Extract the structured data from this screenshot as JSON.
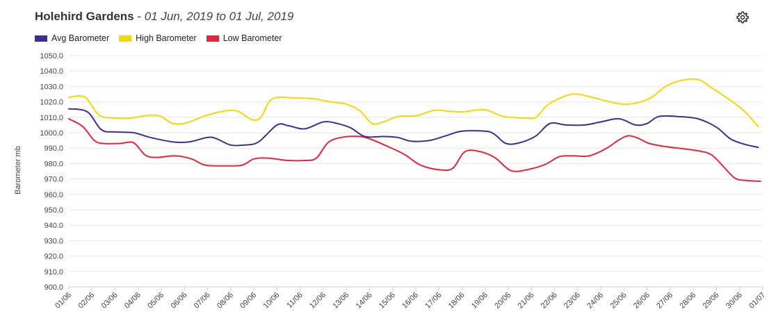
{
  "header": {
    "station": "Holehird Gardens",
    "separator": " - ",
    "range": "01 Jun, 2019 to 01 Jul, 2019"
  },
  "toolbar": {
    "settings_icon": "gear-icon"
  },
  "chart_data": {
    "type": "line",
    "ylabel": "Barometer mb",
    "ylim": [
      900,
      1050
    ],
    "ystep": 10,
    "grid": true,
    "legend_position": "top-left",
    "x_ticks": [
      "01/06",
      "02/06",
      "03/06",
      "04/06",
      "05/06",
      "06/06",
      "07/06",
      "08/06",
      "09/06",
      "10/06",
      "11/06",
      "12/06",
      "13/06",
      "14/06",
      "15/06",
      "16/06",
      "17/06",
      "18/06",
      "19/06",
      "20/06",
      "21/06",
      "22/06",
      "23/06",
      "24/06",
      "25/06",
      "26/06",
      "27/06",
      "28/06",
      "29/06",
      "30/06",
      "01/07"
    ],
    "x_day_range": [
      0,
      30
    ],
    "series": [
      {
        "name": "Avg Barometer",
        "color": "#3d2e8f",
        "points": [
          [
            0,
            1015.5
          ],
          [
            0.8,
            1013.5
          ],
          [
            1.4,
            1002
          ],
          [
            2,
            1000.5
          ],
          [
            2.8,
            1000
          ],
          [
            3.5,
            997
          ],
          [
            4.5,
            994
          ],
          [
            5.2,
            994
          ],
          [
            6,
            997
          ],
          [
            6.4,
            996
          ],
          [
            7,
            992
          ],
          [
            7.6,
            992
          ],
          [
            8.2,
            994
          ],
          [
            9,
            1005
          ],
          [
            9.5,
            1004.5
          ],
          [
            10.2,
            1002.5
          ],
          [
            11,
            1007
          ],
          [
            11.6,
            1006
          ],
          [
            12.2,
            1003
          ],
          [
            12.8,
            997.5
          ],
          [
            13.6,
            997.5
          ],
          [
            14.2,
            997
          ],
          [
            14.8,
            994.5
          ],
          [
            15.6,
            995
          ],
          [
            16.3,
            998
          ],
          [
            17,
            1001
          ],
          [
            18,
            1001
          ],
          [
            18.4,
            999
          ],
          [
            18.9,
            993
          ],
          [
            19.5,
            993.5
          ],
          [
            20.2,
            998
          ],
          [
            20.8,
            1006
          ],
          [
            21.5,
            1005
          ],
          [
            22.3,
            1005
          ],
          [
            23,
            1007
          ],
          [
            23.8,
            1009
          ],
          [
            24.5,
            1005
          ],
          [
            25,
            1006
          ],
          [
            25.5,
            1010.5
          ],
          [
            26.3,
            1010.5
          ],
          [
            27.2,
            1009
          ],
          [
            28,
            1003.5
          ],
          [
            28.6,
            996
          ],
          [
            29.2,
            992.5
          ],
          [
            29.8,
            990.5
          ]
        ]
      },
      {
        "name": "High Barometer",
        "color": "#f5d800",
        "points": [
          [
            0,
            1023
          ],
          [
            0.7,
            1023
          ],
          [
            1.3,
            1011.5
          ],
          [
            2,
            1009.5
          ],
          [
            2.7,
            1009.5
          ],
          [
            3.3,
            1011
          ],
          [
            3.9,
            1011
          ],
          [
            4.5,
            1006
          ],
          [
            5.1,
            1006.5
          ],
          [
            5.9,
            1011
          ],
          [
            6.7,
            1014
          ],
          [
            7.3,
            1014
          ],
          [
            7.9,
            1008.5
          ],
          [
            8.3,
            1010
          ],
          [
            8.8,
            1022
          ],
          [
            9.8,
            1022.5
          ],
          [
            10.6,
            1022
          ],
          [
            11.3,
            1020
          ],
          [
            12,
            1018.5
          ],
          [
            12.6,
            1014
          ],
          [
            13.1,
            1006
          ],
          [
            13.6,
            1007
          ],
          [
            14.2,
            1010.5
          ],
          [
            15,
            1011
          ],
          [
            15.8,
            1014.5
          ],
          [
            16.4,
            1014
          ],
          [
            17,
            1013.5
          ],
          [
            17.8,
            1015
          ],
          [
            18.2,
            1014
          ],
          [
            18.8,
            1010.5
          ],
          [
            19.8,
            1009.5
          ],
          [
            20.2,
            1010
          ],
          [
            20.7,
            1018
          ],
          [
            21.5,
            1024
          ],
          [
            22,
            1025
          ],
          [
            22.6,
            1023
          ],
          [
            23.4,
            1020
          ],
          [
            24,
            1018.5
          ],
          [
            24.6,
            1019.5
          ],
          [
            25.2,
            1023
          ],
          [
            25.8,
            1030
          ],
          [
            26.5,
            1034
          ],
          [
            27.2,
            1034.5
          ],
          [
            27.8,
            1029
          ],
          [
            28.6,
            1021
          ],
          [
            29.2,
            1014
          ],
          [
            29.8,
            1004
          ]
        ]
      },
      {
        "name": "Low Barometer",
        "color": "#e8233a",
        "points": [
          [
            0,
            1009
          ],
          [
            0.6,
            1004
          ],
          [
            1.1,
            995
          ],
          [
            1.5,
            993
          ],
          [
            2.2,
            993
          ],
          [
            2.8,
            993.5
          ],
          [
            3.3,
            985.5
          ],
          [
            3.8,
            984
          ],
          [
            4.6,
            985
          ],
          [
            5.3,
            983
          ],
          [
            5.9,
            979
          ],
          [
            6.8,
            978.5
          ],
          [
            7.5,
            979
          ],
          [
            8,
            983
          ],
          [
            8.6,
            983.5
          ],
          [
            9.5,
            982
          ],
          [
            10.2,
            982
          ],
          [
            10.7,
            983.5
          ],
          [
            11.2,
            993.5
          ],
          [
            11.8,
            997
          ],
          [
            12.6,
            997.5
          ],
          [
            13.1,
            995.5
          ],
          [
            13.8,
            991
          ],
          [
            14.5,
            986
          ],
          [
            15.2,
            979
          ],
          [
            16,
            976
          ],
          [
            16.6,
            977
          ],
          [
            17.1,
            987.5
          ],
          [
            17.7,
            988
          ],
          [
            18.4,
            984
          ],
          [
            19.1,
            975.5
          ],
          [
            19.8,
            976
          ],
          [
            20.6,
            979.5
          ],
          [
            21.2,
            984.5
          ],
          [
            21.8,
            985
          ],
          [
            22.5,
            985
          ],
          [
            23.2,
            989.5
          ],
          [
            23.8,
            995.5
          ],
          [
            24.2,
            998
          ],
          [
            24.6,
            996.5
          ],
          [
            25.1,
            993
          ],
          [
            25.8,
            991
          ],
          [
            26.6,
            989.5
          ],
          [
            27.3,
            988
          ],
          [
            27.8,
            985.5
          ],
          [
            28.3,
            978
          ],
          [
            28.8,
            970.5
          ],
          [
            29.3,
            969
          ],
          [
            29.9,
            968.5
          ]
        ]
      }
    ]
  }
}
